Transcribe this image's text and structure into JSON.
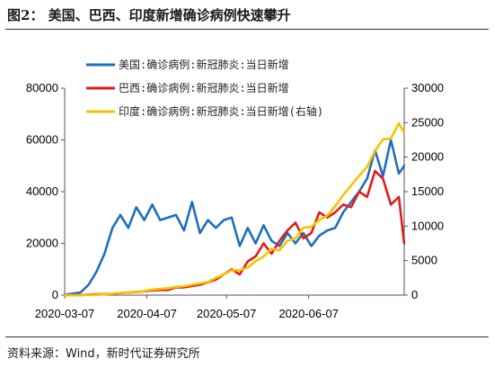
{
  "figure": {
    "title_prefix": "图2",
    "title_text": "：  美国、巴西、印度新增确诊病例快速攀升",
    "source": "资料来源：Wind，新时代证券研究所"
  },
  "colors": {
    "usa": "#1f6fbf",
    "brazil": "#e31b1b",
    "india": "#f5c400"
  },
  "chart_data": {
    "type": "line",
    "title": "",
    "x": [
      "2020-03-07",
      "2020-03-10",
      "2020-03-13",
      "2020-03-16",
      "2020-03-19",
      "2020-03-22",
      "2020-03-25",
      "2020-03-28",
      "2020-03-31",
      "2020-04-03",
      "2020-04-06",
      "2020-04-09",
      "2020-04-12",
      "2020-04-15",
      "2020-04-18",
      "2020-04-21",
      "2020-04-24",
      "2020-04-27",
      "2020-04-30",
      "2020-05-03",
      "2020-05-06",
      "2020-05-09",
      "2020-05-12",
      "2020-05-15",
      "2020-05-18",
      "2020-05-21",
      "2020-05-24",
      "2020-05-27",
      "2020-05-30",
      "2020-06-02",
      "2020-06-05",
      "2020-06-08",
      "2020-06-11",
      "2020-06-14",
      "2020-06-17",
      "2020-06-20",
      "2020-06-23",
      "2020-06-26",
      "2020-06-29",
      "2020-07-02",
      "2020-07-05",
      "2020-07-08",
      "2020-07-11",
      "2020-07-13"
    ],
    "x_tick_labels": [
      "2020-03-07",
      "2020-04-07",
      "2020-05-07",
      "2020-06-07"
    ],
    "y_left": {
      "ticks": [
        0,
        20000,
        40000,
        60000,
        80000
      ],
      "ylim": [
        0,
        80000
      ]
    },
    "y_right": {
      "ticks": [
        0,
        5000,
        10000,
        15000,
        20000,
        25000,
        30000
      ],
      "ylim": [
        0,
        30000
      ]
    },
    "series": [
      {
        "name": "美国:确诊病例:新冠肺炎:当日新增",
        "axis": "left",
        "color_key": "usa",
        "values": [
          100,
          600,
          1000,
          4000,
          9000,
          16000,
          26000,
          31000,
          26000,
          34000,
          29000,
          35000,
          29000,
          30000,
          31000,
          25000,
          36000,
          24000,
          29000,
          26000,
          29000,
          30000,
          19000,
          26000,
          20000,
          27000,
          21000,
          19000,
          24000,
          20000,
          24000,
          19000,
          23000,
          25000,
          26000,
          32000,
          36000,
          40000,
          45000,
          56000,
          46000,
          60000,
          47000,
          50000
        ]
      },
      {
        "name": "巴西:确诊病例:新冠肺炎:当日新增",
        "axis": "left",
        "color_key": "brazil",
        "values": [
          0,
          0,
          0,
          200,
          300,
          400,
          500,
          800,
          1000,
          1200,
          1500,
          1800,
          2000,
          2000,
          3000,
          3000,
          3500,
          4000,
          5000,
          6000,
          8000,
          10000,
          8000,
          13000,
          15000,
          20000,
          16000,
          21000,
          25000,
          28000,
          22000,
          24000,
          32000,
          30000,
          32000,
          35000,
          34000,
          40000,
          38000,
          48000,
          45000,
          35000,
          38000,
          20000
        ]
      },
      {
        "name": "印度:确诊病例:新冠肺炎:当日新增(右轴)",
        "axis": "right",
        "color_key": "india",
        "values": [
          0,
          0,
          0,
          20,
          50,
          100,
          200,
          300,
          400,
          500,
          600,
          800,
          900,
          1000,
          1200,
          1300,
          1500,
          1700,
          1900,
          2500,
          3000,
          3600,
          3600,
          4000,
          4900,
          5600,
          6700,
          6500,
          7900,
          8200,
          9800,
          9900,
          10900,
          11500,
          12900,
          14500,
          15900,
          17300,
          18600,
          20900,
          22600,
          22700,
          24900,
          23500
        ]
      }
    ],
    "legend": {
      "placement": "top-left"
    },
    "grid": false
  }
}
